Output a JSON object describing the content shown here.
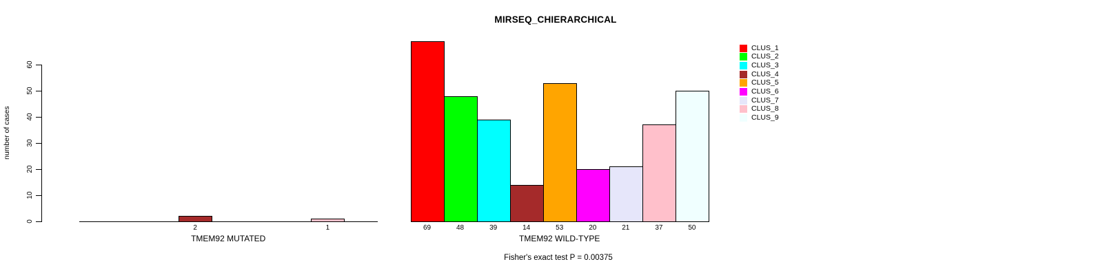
{
  "chart_data": {
    "type": "bar",
    "title": "MIRSEQ_CHIERARCHICAL",
    "ylabel": "number of cases",
    "annotation": "Fisher's exact test P = 0.00375",
    "yticks": [
      0,
      10,
      20,
      30,
      40,
      50,
      60
    ],
    "ylim": [
      0,
      69
    ],
    "grid": false,
    "legend_position": "right",
    "bar_border_color": "#000000",
    "categories": [
      "CLUS_1",
      "CLUS_2",
      "CLUS_3",
      "CLUS_4",
      "CLUS_5",
      "CLUS_6",
      "CLUS_7",
      "CLUS_8",
      "CLUS_9"
    ],
    "colors": [
      "#FF0000",
      "#00FF00",
      "#00FFFF",
      "#A52A2A",
      "#FFA500",
      "#FF00FF",
      "#E6E6FA",
      "#FFC0CB",
      "#F0FFFF"
    ],
    "groups": [
      {
        "label": "TMEM92 MUTATED",
        "values": [
          0,
          0,
          0,
          2,
          0,
          0,
          0,
          1,
          0
        ]
      },
      {
        "label": "TMEM92 WILD-TYPE",
        "values": [
          69,
          48,
          39,
          14,
          53,
          20,
          21,
          37,
          50
        ]
      }
    ],
    "legend": {
      "items": [
        {
          "label": "CLUS_1",
          "color": "#FF0000"
        },
        {
          "label": "CLUS_2",
          "color": "#00FF00"
        },
        {
          "label": "CLUS_3",
          "color": "#00FFFF"
        },
        {
          "label": "CLUS_4",
          "color": "#A52A2A"
        },
        {
          "label": "CLUS_5",
          "color": "#FFA500"
        },
        {
          "label": "CLUS_6",
          "color": "#FF00FF"
        },
        {
          "label": "CLUS_7",
          "color": "#E6E6FA"
        },
        {
          "label": "CLUS_8",
          "color": "#FFC0CB"
        },
        {
          "label": "CLUS_9",
          "color": "#F0FFFF"
        }
      ]
    }
  }
}
